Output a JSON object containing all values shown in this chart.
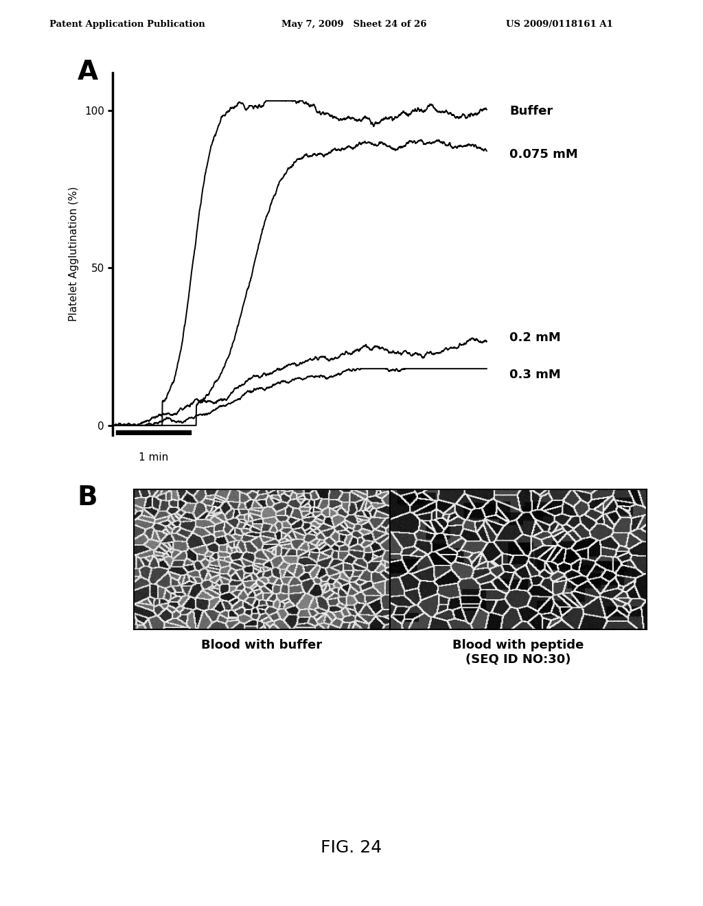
{
  "header_left": "Patent Application Publication",
  "header_mid": "May 7, 2009   Sheet 24 of 26",
  "header_right": "US 2009/0118161 A1",
  "panel_a_label": "A",
  "panel_b_label": "B",
  "ylabel": "Platelet Agglutination (%)",
  "yticks": [
    0,
    50,
    100
  ],
  "time_bar_label": "1 min",
  "curve_labels": [
    "Buffer",
    "0.075 mM",
    "0.2 mM",
    "0.3 mM"
  ],
  "img_label_left": "Blood with buffer",
  "img_label_right": "Blood with peptide\n(SEQ ID NO:30)",
  "figure_label": "FIG. 24",
  "background_color": "#ffffff",
  "line_color": "#000000",
  "font_color": "#000000",
  "header_fontsize": 9.5,
  "axis_fontsize": 11,
  "label_fontsize": 13,
  "panel_label_fontsize": 28,
  "fig_label_fontsize": 18
}
